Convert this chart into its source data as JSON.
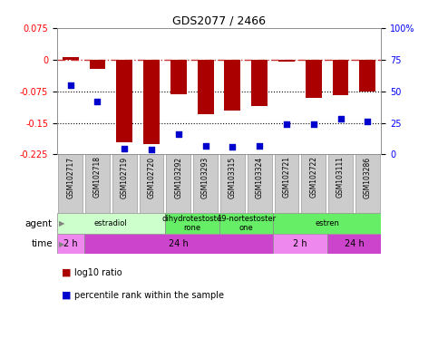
{
  "title": "GDS2077 / 2466",
  "samples": [
    "GSM102717",
    "GSM102718",
    "GSM102719",
    "GSM102720",
    "GSM103292",
    "GSM103293",
    "GSM103315",
    "GSM103324",
    "GSM102721",
    "GSM102722",
    "GSM103111",
    "GSM103286"
  ],
  "log10_ratio": [
    0.005,
    -0.022,
    -0.195,
    -0.2,
    -0.083,
    -0.13,
    -0.12,
    -0.11,
    -0.005,
    -0.09,
    -0.085,
    -0.075
  ],
  "percentile_rank": [
    55,
    42,
    5,
    4,
    16,
    7,
    6,
    7,
    24,
    24,
    28,
    26
  ],
  "ylim_left": [
    -0.225,
    0.075
  ],
  "ylim_right": [
    0,
    100
  ],
  "yticks_left": [
    -0.225,
    -0.15,
    -0.075,
    0,
    0.075
  ],
  "yticks_right": [
    0,
    25,
    50,
    75,
    100
  ],
  "dotted_lines": [
    -0.075,
    -0.15
  ],
  "bar_color": "#aa0000",
  "dot_color": "#0000cc",
  "agent_groups": [
    {
      "label": "estradiol",
      "start": 0,
      "end": 4,
      "color": "#ccffcc"
    },
    {
      "label": "dihydrotestoste\nrone",
      "start": 4,
      "end": 6,
      "color": "#66ee66"
    },
    {
      "label": "19-nortestoster\none",
      "start": 6,
      "end": 8,
      "color": "#66ee66"
    },
    {
      "label": "estren",
      "start": 8,
      "end": 12,
      "color": "#66ee66"
    }
  ],
  "time_groups": [
    {
      "label": "2 h",
      "start": 0,
      "end": 1,
      "color": "#ee88ee"
    },
    {
      "label": "24 h",
      "start": 1,
      "end": 8,
      "color": "#cc44cc"
    },
    {
      "label": "2 h",
      "start": 8,
      "end": 10,
      "color": "#ee88ee"
    },
    {
      "label": "24 h",
      "start": 10,
      "end": 12,
      "color": "#cc44cc"
    }
  ],
  "legend_red_label": "log10 ratio",
  "legend_blue_label": "percentile rank within the sample",
  "dashdot_color": "#cc3333",
  "agent_label": "agent",
  "time_label": "time",
  "bg_color": "#ffffff",
  "sample_box_color": "#cccccc",
  "sample_box_edge": "#999999"
}
